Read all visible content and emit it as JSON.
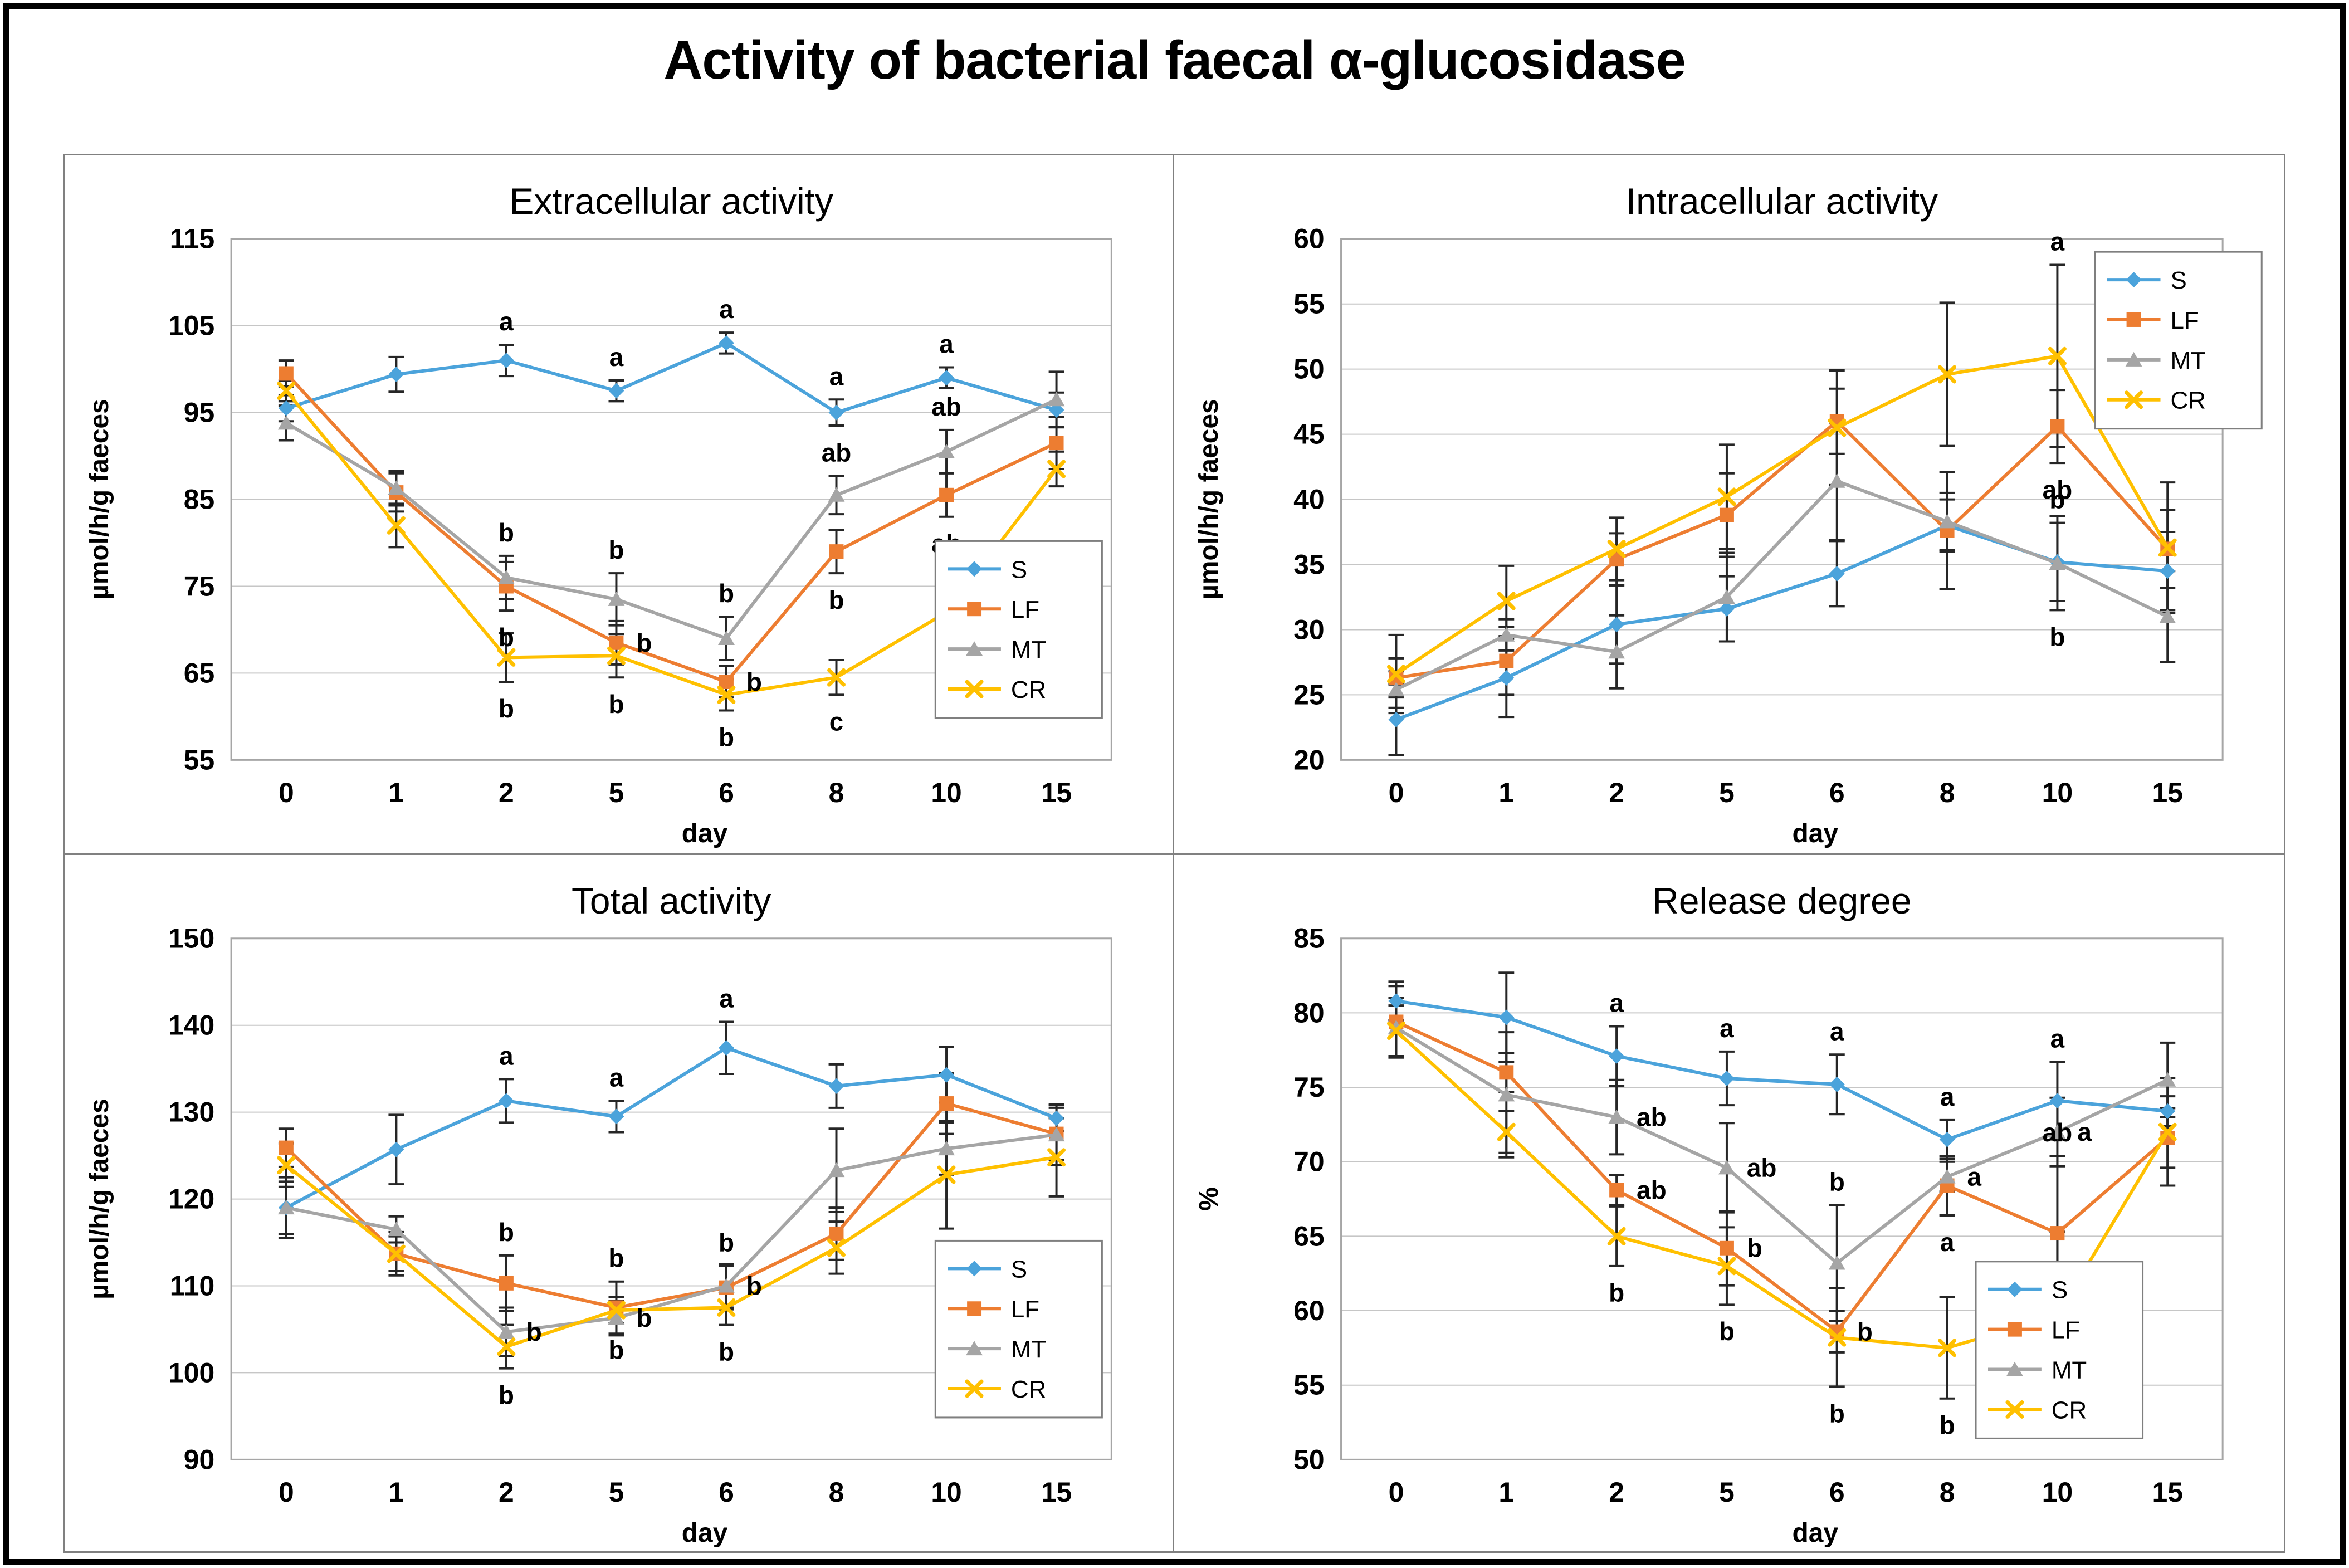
{
  "figure_title": "Activity of bacterial faecal α-glucosidase",
  "xlabel": "day",
  "categories": [
    "0",
    "1",
    "2",
    "5",
    "6",
    "8",
    "10",
    "15"
  ],
  "colors": {
    "s_blue": "#4BA3DB",
    "lf_orange": "#ED7D31",
    "mt_gray": "#A5A5A5",
    "cr_yellow": "#FFC000",
    "error_bar": "#262626",
    "gridline": "#C6C6C6",
    "plot_frame": "#A6A6A6",
    "legend_border": "#7F7F7F",
    "text": "#000000"
  },
  "legend_labels": [
    "S",
    "LF",
    "MT",
    "CR"
  ],
  "chart_data": [
    {
      "id": "extracellular",
      "type": "line",
      "title": "Extracellular activity",
      "xlabel": "day",
      "ylabel": "µmol/h/g faeces",
      "ylim": [
        55,
        115
      ],
      "yticks": [
        55,
        65,
        75,
        85,
        95,
        105,
        115
      ],
      "grid": true,
      "legend_position": "mid-right",
      "legend_fx": 0.8,
      "legend_fy": 0.58,
      "categories": [
        "0",
        "1",
        "2",
        "5",
        "6",
        "8",
        "10",
        "15"
      ],
      "series": [
        {
          "name": "S",
          "marker": "diamond",
          "color": "#4BA3DB",
          "values": [
            95.5,
            99.4,
            101.0,
            97.5,
            103.0,
            95.0,
            99.0,
            95.3
          ],
          "errors": [
            1.5,
            2.0,
            1.8,
            1.2,
            1.2,
            1.5,
            1.2,
            2.0
          ]
        },
        {
          "name": "LF",
          "marker": "square",
          "color": "#ED7D31",
          "values": [
            99.5,
            85.8,
            75.0,
            68.5,
            64.0,
            79.0,
            85.5,
            91.5
          ],
          "errors": [
            1.5,
            2.2,
            2.8,
            2.5,
            1.8,
            2.5,
            2.5,
            3.0
          ]
        },
        {
          "name": "MT",
          "marker": "triangle",
          "color": "#A5A5A5",
          "values": [
            93.8,
            86.3,
            76.0,
            73.5,
            69.0,
            85.5,
            90.5,
            96.5
          ],
          "errors": [
            2.0,
            2.0,
            2.5,
            3.0,
            2.5,
            2.2,
            2.5,
            3.2
          ]
        },
        {
          "name": "CR",
          "marker": "x",
          "color": "#FFC000",
          "values": [
            97.5,
            82.0,
            66.8,
            67.0,
            62.5,
            64.5,
            72.0,
            88.5
          ],
          "errors": [
            1.2,
            2.5,
            2.8,
            2.5,
            1.8,
            2.0,
            2.5,
            2.0
          ]
        }
      ],
      "annotations": [
        {
          "series": "S",
          "index": 2,
          "text": "a",
          "pos": "above"
        },
        {
          "series": "S",
          "index": 3,
          "text": "a",
          "pos": "above"
        },
        {
          "series": "S",
          "index": 4,
          "text": "a",
          "pos": "above"
        },
        {
          "series": "S",
          "index": 5,
          "text": "a",
          "pos": "above"
        },
        {
          "series": "S",
          "index": 6,
          "text": "a",
          "pos": "above"
        },
        {
          "series": "MT",
          "index": 2,
          "text": "b",
          "pos": "above"
        },
        {
          "series": "MT",
          "index": 3,
          "text": "b",
          "pos": "above"
        },
        {
          "series": "MT",
          "index": 4,
          "text": "b",
          "pos": "above"
        },
        {
          "series": "MT",
          "index": 5,
          "text": "ab",
          "pos": "above"
        },
        {
          "series": "MT",
          "index": 6,
          "text": "ab",
          "pos": "above"
        },
        {
          "series": "LF",
          "index": 2,
          "text": "b",
          "pos": "below"
        },
        {
          "series": "LF",
          "index": 3,
          "text": "b",
          "pos": "right"
        },
        {
          "series": "LF",
          "index": 4,
          "text": "b",
          "pos": "right"
        },
        {
          "series": "LF",
          "index": 5,
          "text": "b",
          "pos": "below"
        },
        {
          "series": "LF",
          "index": 6,
          "text": "ab",
          "pos": "below"
        },
        {
          "series": "CR",
          "index": 2,
          "text": "b",
          "pos": "below"
        },
        {
          "series": "CR",
          "index": 3,
          "text": "b",
          "pos": "below"
        },
        {
          "series": "CR",
          "index": 4,
          "text": "b",
          "pos": "below"
        },
        {
          "series": "CR",
          "index": 5,
          "text": "c",
          "pos": "below"
        },
        {
          "series": "CR",
          "index": 6,
          "text": "b",
          "pos": "below"
        }
      ]
    },
    {
      "id": "intracellular",
      "type": "line",
      "title": "Intracellular activity",
      "xlabel": "day",
      "ylabel": "µmol/h/g faeces",
      "ylim": [
        20,
        60
      ],
      "yticks": [
        20,
        25,
        30,
        35,
        40,
        45,
        50,
        55,
        60
      ],
      "grid": true,
      "legend_position": "top-right",
      "legend_fx": 0.855,
      "legend_fy": 0.025,
      "categories": [
        "0",
        "1",
        "2",
        "5",
        "6",
        "8",
        "10",
        "15"
      ],
      "series": [
        {
          "name": "S",
          "marker": "diamond",
          "color": "#4BA3DB",
          "values": [
            23.1,
            26.3,
            30.4,
            31.6,
            34.3,
            38.0,
            35.2,
            34.5
          ],
          "errors": [
            2.7,
            3.0,
            3.0,
            2.5,
            2.5,
            2.0,
            3.0,
            3.0
          ]
        },
        {
          "name": "LF",
          "marker": "square",
          "color": "#ED7D31",
          "values": [
            26.3,
            27.6,
            35.4,
            38.8,
            46.0,
            37.6,
            45.6,
            36.2
          ],
          "errors": [
            1.5,
            2.6,
            2.0,
            3.2,
            2.5,
            4.5,
            2.8,
            3.0
          ]
        },
        {
          "name": "MT",
          "marker": "triangle",
          "color": "#A5A5A5",
          "values": [
            25.4,
            29.6,
            28.3,
            32.5,
            41.4,
            38.3,
            35.1,
            31.0
          ],
          "errors": [
            1.4,
            1.2,
            2.8,
            3.4,
            4.5,
            2.2,
            3.6,
            3.5
          ]
        },
        {
          "name": "CR",
          "marker": "x",
          "color": "#FFC000",
          "values": [
            26.6,
            32.2,
            36.2,
            40.2,
            45.5,
            49.6,
            51.0,
            36.3
          ],
          "errors": [
            3.0,
            2.7,
            2.4,
            4.0,
            4.4,
            5.5,
            7.0,
            5.0
          ]
        }
      ],
      "annotations": [
        {
          "series": "CR",
          "index": 6,
          "text": "a",
          "pos": "above"
        },
        {
          "series": "LF",
          "index": 6,
          "text": "ab",
          "pos": "below"
        },
        {
          "series": "S",
          "index": 6,
          "text": "b",
          "pos": "above"
        },
        {
          "series": "MT",
          "index": 6,
          "text": "b",
          "pos": "below"
        }
      ]
    },
    {
      "id": "total",
      "type": "line",
      "title": "Total activity",
      "xlabel": "day",
      "ylabel": "µmol/h/g faeces",
      "ylim": [
        90,
        150
      ],
      "yticks": [
        90,
        100,
        110,
        120,
        130,
        140,
        150
      ],
      "grid": true,
      "legend_position": "bottom-right",
      "legend_fx": 0.8,
      "legend_fy": 0.58,
      "categories": [
        "0",
        "1",
        "2",
        "5",
        "6",
        "8",
        "10",
        "15"
      ],
      "series": [
        {
          "name": "S",
          "marker": "diamond",
          "color": "#4BA3DB",
          "values": [
            119.0,
            125.7,
            131.3,
            129.5,
            137.4,
            133.0,
            134.3,
            129.3
          ],
          "errors": [
            3.0,
            4.0,
            2.5,
            1.8,
            3.0,
            2.5,
            3.2,
            1.5
          ]
        },
        {
          "name": "LF",
          "marker": "square",
          "color": "#ED7D31",
          "values": [
            125.9,
            113.7,
            110.3,
            107.5,
            109.8,
            116.0,
            131.0,
            127.5
          ],
          "errors": [
            2.2,
            2.5,
            3.2,
            3.0,
            2.5,
            3.0,
            3.5,
            3.0
          ]
        },
        {
          "name": "MT",
          "marker": "triangle",
          "color": "#A5A5A5",
          "values": [
            119.0,
            116.5,
            104.7,
            106.3,
            110.0,
            123.3,
            125.8,
            127.4
          ],
          "errors": [
            3.5,
            1.5,
            2.8,
            2.0,
            2.5,
            4.8,
            3.0,
            3.5
          ]
        },
        {
          "name": "CR",
          "marker": "x",
          "color": "#FFC000",
          "values": [
            123.9,
            113.7,
            103.0,
            107.2,
            107.5,
            114.4,
            122.8,
            124.8
          ],
          "errors": [
            2.5,
            2.0,
            2.5,
            1.5,
            2.0,
            3.0,
            6.2,
            4.5
          ]
        }
      ],
      "annotations": [
        {
          "series": "S",
          "index": 2,
          "text": "a",
          "pos": "above"
        },
        {
          "series": "S",
          "index": 3,
          "text": "a",
          "pos": "above"
        },
        {
          "series": "S",
          "index": 4,
          "text": "a",
          "pos": "above"
        },
        {
          "series": "LF",
          "index": 2,
          "text": "b",
          "pos": "above"
        },
        {
          "series": "LF",
          "index": 3,
          "text": "b",
          "pos": "above"
        },
        {
          "series": "LF",
          "index": 4,
          "text": "b",
          "pos": "above"
        },
        {
          "series": "MT",
          "index": 2,
          "text": "b",
          "pos": "right"
        },
        {
          "series": "MT",
          "index": 3,
          "text": "b",
          "pos": "right"
        },
        {
          "series": "MT",
          "index": 4,
          "text": "b",
          "pos": "right"
        },
        {
          "series": "CR",
          "index": 2,
          "text": "b",
          "pos": "below"
        },
        {
          "series": "CR",
          "index": 3,
          "text": "b",
          "pos": "below"
        },
        {
          "series": "CR",
          "index": 4,
          "text": "b",
          "pos": "below"
        }
      ]
    },
    {
      "id": "release",
      "type": "line",
      "title": "Release degree",
      "xlabel": "day",
      "ylabel": "%",
      "ylim": [
        50,
        85
      ],
      "yticks": [
        50,
        55,
        60,
        65,
        70,
        75,
        80,
        85
      ],
      "grid": true,
      "legend_position": "bottom-right",
      "legend_fx": 0.72,
      "legend_fy": 0.62,
      "categories": [
        "0",
        "1",
        "2",
        "5",
        "6",
        "8",
        "10",
        "15"
      ],
      "series": [
        {
          "name": "S",
          "marker": "diamond",
          "color": "#4BA3DB",
          "values": [
            80.8,
            79.7,
            77.1,
            75.6,
            75.2,
            71.5,
            74.1,
            73.4
          ],
          "errors": [
            1.3,
            3.0,
            2.0,
            1.8,
            2.0,
            1.3,
            2.6,
            1.0
          ]
        },
        {
          "name": "LF",
          "marker": "square",
          "color": "#ED7D31",
          "values": [
            79.4,
            76.0,
            68.1,
            64.2,
            58.6,
            68.4,
            65.2,
            71.6
          ],
          "errors": [
            2.4,
            1.3,
            1.0,
            2.5,
            1.4,
            2.0,
            5.2,
            2.0
          ]
        },
        {
          "name": "MT",
          "marker": "triangle",
          "color": "#A5A5A5",
          "values": [
            79.0,
            74.5,
            73.0,
            69.6,
            63.2,
            69.0,
            72.0,
            75.5
          ],
          "errors": [
            2.0,
            4.2,
            2.5,
            3.0,
            3.9,
            1.0,
            2.3,
            2.5
          ]
        },
        {
          "name": "CR",
          "marker": "x",
          "color": "#FFC000",
          "values": [
            78.8,
            72.0,
            65.0,
            63.0,
            58.2,
            57.5,
            59.7,
            72.0
          ],
          "errors": [
            1.7,
            1.4,
            2.0,
            2.6,
            3.3,
            3.4,
            5.6,
            3.6
          ]
        }
      ],
      "annotations": [
        {
          "series": "S",
          "index": 2,
          "text": "a",
          "pos": "above"
        },
        {
          "series": "S",
          "index": 3,
          "text": "a",
          "pos": "above"
        },
        {
          "series": "S",
          "index": 4,
          "text": "a",
          "pos": "above"
        },
        {
          "series": "S",
          "index": 5,
          "text": "a",
          "pos": "above"
        },
        {
          "series": "S",
          "index": 6,
          "text": "a",
          "pos": "above"
        },
        {
          "series": "MT",
          "index": 2,
          "text": "ab",
          "pos": "right"
        },
        {
          "series": "MT",
          "index": 3,
          "text": "ab",
          "pos": "right"
        },
        {
          "series": "MT",
          "index": 4,
          "text": "b",
          "pos": "above"
        },
        {
          "series": "MT",
          "index": 5,
          "text": "a",
          "pos": "right"
        },
        {
          "series": "MT",
          "index": 6,
          "text": "a",
          "pos": "right"
        },
        {
          "series": "LF",
          "index": 2,
          "text": "ab",
          "pos": "right"
        },
        {
          "series": "LF",
          "index": 3,
          "text": "b",
          "pos": "right"
        },
        {
          "series": "LF",
          "index": 4,
          "text": "b",
          "pos": "right"
        },
        {
          "series": "LF",
          "index": 5,
          "text": "a",
          "pos": "below"
        },
        {
          "series": "LF",
          "index": 6,
          "text": "ab",
          "pos": "above"
        },
        {
          "series": "CR",
          "index": 2,
          "text": "b",
          "pos": "below"
        },
        {
          "series": "CR",
          "index": 3,
          "text": "b",
          "pos": "below"
        },
        {
          "series": "CR",
          "index": 4,
          "text": "b",
          "pos": "below"
        },
        {
          "series": "CR",
          "index": 5,
          "text": "b",
          "pos": "below"
        },
        {
          "series": "CR",
          "index": 6,
          "text": "b",
          "pos": "below"
        }
      ]
    }
  ]
}
